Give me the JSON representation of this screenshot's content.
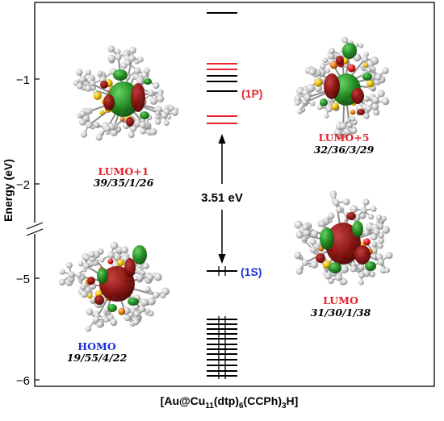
{
  "axis": {
    "label": "Energy (eV)",
    "ticks_upper": [
      "−1",
      "−2"
    ],
    "ticks_lower": [
      "−5",
      "−6"
    ]
  },
  "levels": {
    "p_label": "(1P)",
    "s_label": "(1S)",
    "gap_label": "3.51 eV"
  },
  "compound": {
    "prefix": "[Au@Cu",
    "sub1": "11",
    "mid1": "(dtp)",
    "sub2": "6",
    "mid2": "(CCPh)",
    "sub3": "3",
    "suffix": "H]"
  },
  "orbitals": {
    "lumo1": {
      "name": "LUMO+1",
      "composition": "39/35/1/26"
    },
    "lumo5": {
      "name": "LUMO+5",
      "composition": "32/36/3/29"
    },
    "homo": {
      "name": "HOMO",
      "composition": "19/55/4/22"
    },
    "lumo": {
      "name": "LUMO",
      "composition": "31/30/1/38"
    }
  },
  "colors": {
    "p_levels": "#e8212b",
    "s_label": "#1f2fd6",
    "homo_label": "#1f2fd6",
    "lumo_labels": "#e8212b",
    "lobe_red": "#8a0f0f",
    "lobe_green": "#1d8a1d"
  }
}
